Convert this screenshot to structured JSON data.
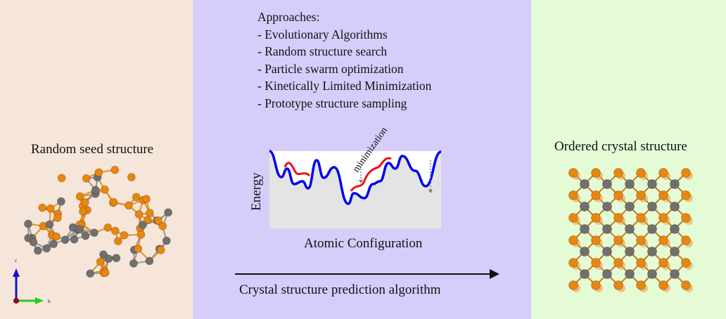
{
  "left_panel": {
    "title": "Random seed structure",
    "axes": {
      "c": "c",
      "b": "b",
      "a": "a"
    }
  },
  "middle_panel": {
    "approaches_heading": "Approaches:",
    "approaches": [
      "- Evolutionary Algorithms",
      "- Random structure search",
      "- Particle swarm optimization",
      "- Kinetically Limited Minimization",
      "- Prototype structure sampling"
    ],
    "energy_label": "Energy",
    "config_label": "Atomic Configuration",
    "minimization_label": "minimization",
    "arrow_label": "Crystal structure prediction algorithm"
  },
  "right_panel": {
    "title": "Ordered crystal structure"
  },
  "colors": {
    "left_bg": "#f6e6d9",
    "mid_bg": "#d7cdfb",
    "right_bg": "#e4fbd5",
    "landscape": "#0000ee",
    "path": "#ee1111",
    "atom_orange": "#e8860f",
    "atom_gray": "#707070"
  }
}
